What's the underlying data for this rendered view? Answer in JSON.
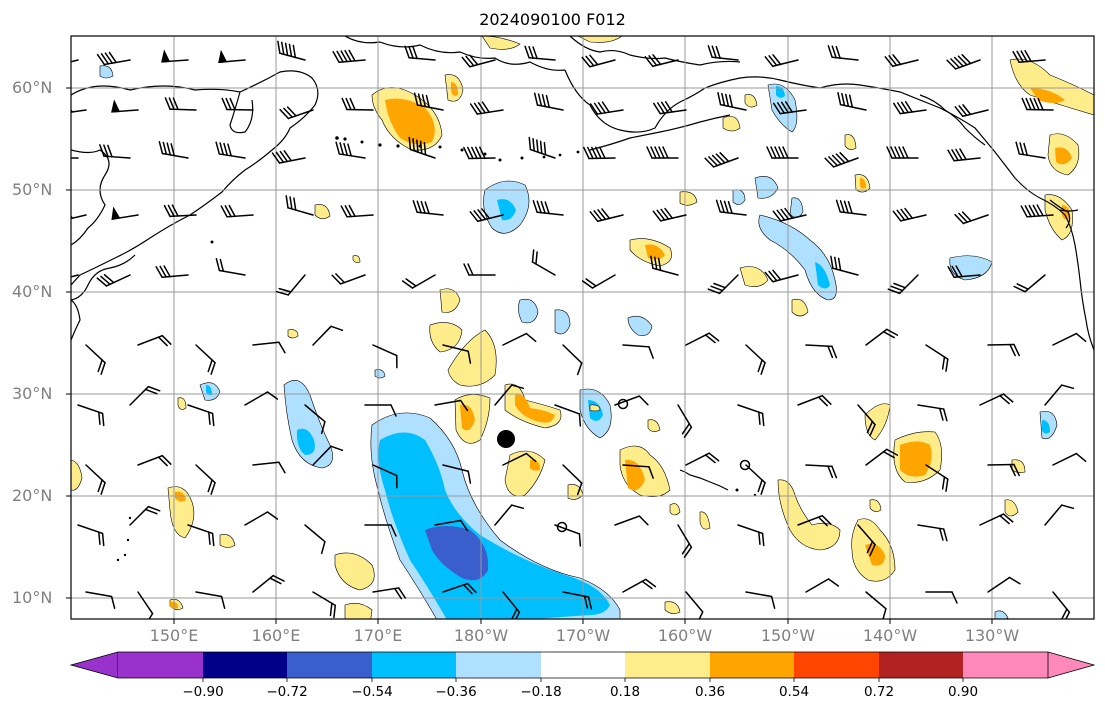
{
  "title": "2024090100 F012",
  "lat_labels": [
    "60°N",
    "50°N",
    "40°N",
    "30°N",
    "20°N",
    "10°N"
  ],
  "lon_labels": [
    "150°E",
    "160°E",
    "170°E",
    "180°W",
    "170°W",
    "160°W",
    "150°W",
    "140°W",
    "130°W"
  ],
  "colorbar": {
    "ticks": [
      "−0.90",
      "−0.72",
      "−0.54",
      "−0.36",
      "−0.18",
      "0.18",
      "0.36",
      "0.54",
      "0.72",
      "0.90"
    ],
    "colors": [
      "#9932cc",
      "#00008b",
      "#3a5fcd",
      "#00bfff",
      "#b0e0ff",
      "#ffffff",
      "#ffec8b",
      "#ffa500",
      "#ff4500",
      "#b22222",
      "#ff88bb"
    ]
  },
  "palette": {
    "light_blue": "#b0e0ff",
    "blue": "#00bfff",
    "royal_blue": "#3a5fcd",
    "light_yellow": "#ffec8b",
    "orange": "#ffa500",
    "red": "#ff4500"
  }
}
